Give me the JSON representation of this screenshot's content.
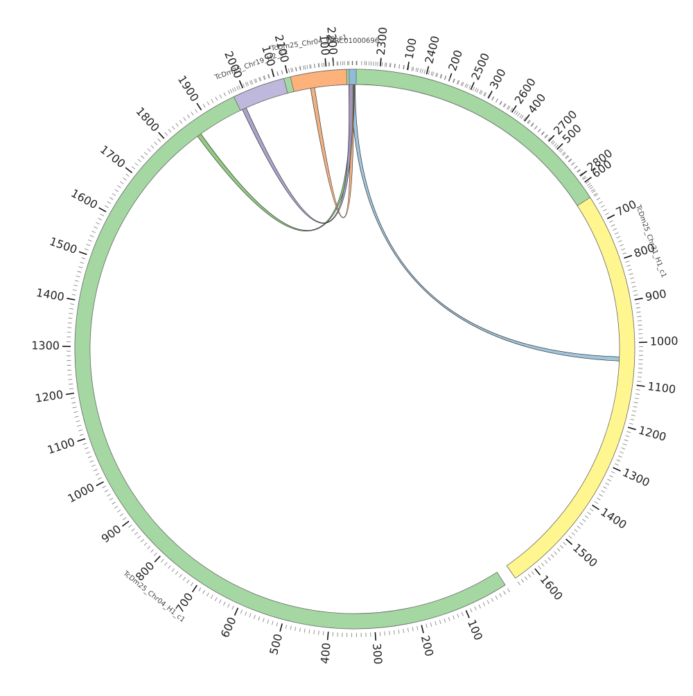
{
  "chart_data": {
    "type": "chord",
    "segments": [
      {
        "id": "chr31",
        "name": "TcDm25_Chr31_H1_c1",
        "length": 1650,
        "color": "#fff68f",
        "tick_labels": [
          "100",
          "200",
          "300",
          "400",
          "500",
          "600",
          "700",
          "800",
          "900",
          "1000",
          "1100",
          "1200",
          "1300",
          "1400",
          "1500",
          "1600"
        ]
      },
      {
        "id": "chr04",
        "name": "TcDm25_Chr04_H1_c1",
        "length": 2850,
        "color": "#a4d7a2",
        "tick_labels": [
          "100",
          "200",
          "300",
          "400",
          "500",
          "600",
          "700",
          "800",
          "900",
          "1000",
          "1100",
          "1200",
          "1300",
          "1400",
          "1500",
          "1600",
          "1700",
          "1800",
          "1900",
          "2000",
          "2100",
          "2200",
          "2300",
          "2400",
          "2500",
          "2600",
          "2700",
          "2800"
        ]
      },
      {
        "id": "chr19",
        "name": "TcDm25_Chr19_H2_c1",
        "length": 120,
        "color": "#bdb8dc",
        "tick_labels": [
          "100"
        ]
      },
      {
        "id": "chr04h2",
        "name": "TcDm25_Chr04_H2_c1",
        "length": 155,
        "color": "#fdb27b",
        "tick_labels": [
          "100"
        ]
      },
      {
        "id": "tprc",
        "name": "TPRC01000696",
        "length": 18,
        "color": "#8fbcd8",
        "tick_labels": []
      }
    ],
    "links": [
      {
        "from": "tprc",
        "from_pos": 10,
        "to": "chr31",
        "to_pos": 1040,
        "color": "#8fbcd8"
      },
      {
        "from": "tprc",
        "from_pos": 8,
        "to": "chr04",
        "to_pos": 1865,
        "color": "#7cc36a"
      },
      {
        "from": "tprc",
        "from_pos": 6,
        "to": "chr04h2",
        "to_pos": 55,
        "color": "#f0a36b"
      },
      {
        "from": "tprc",
        "from_pos": 4,
        "to": "chr19",
        "to_pos": 10,
        "color": "#9b94c4"
      }
    ]
  }
}
